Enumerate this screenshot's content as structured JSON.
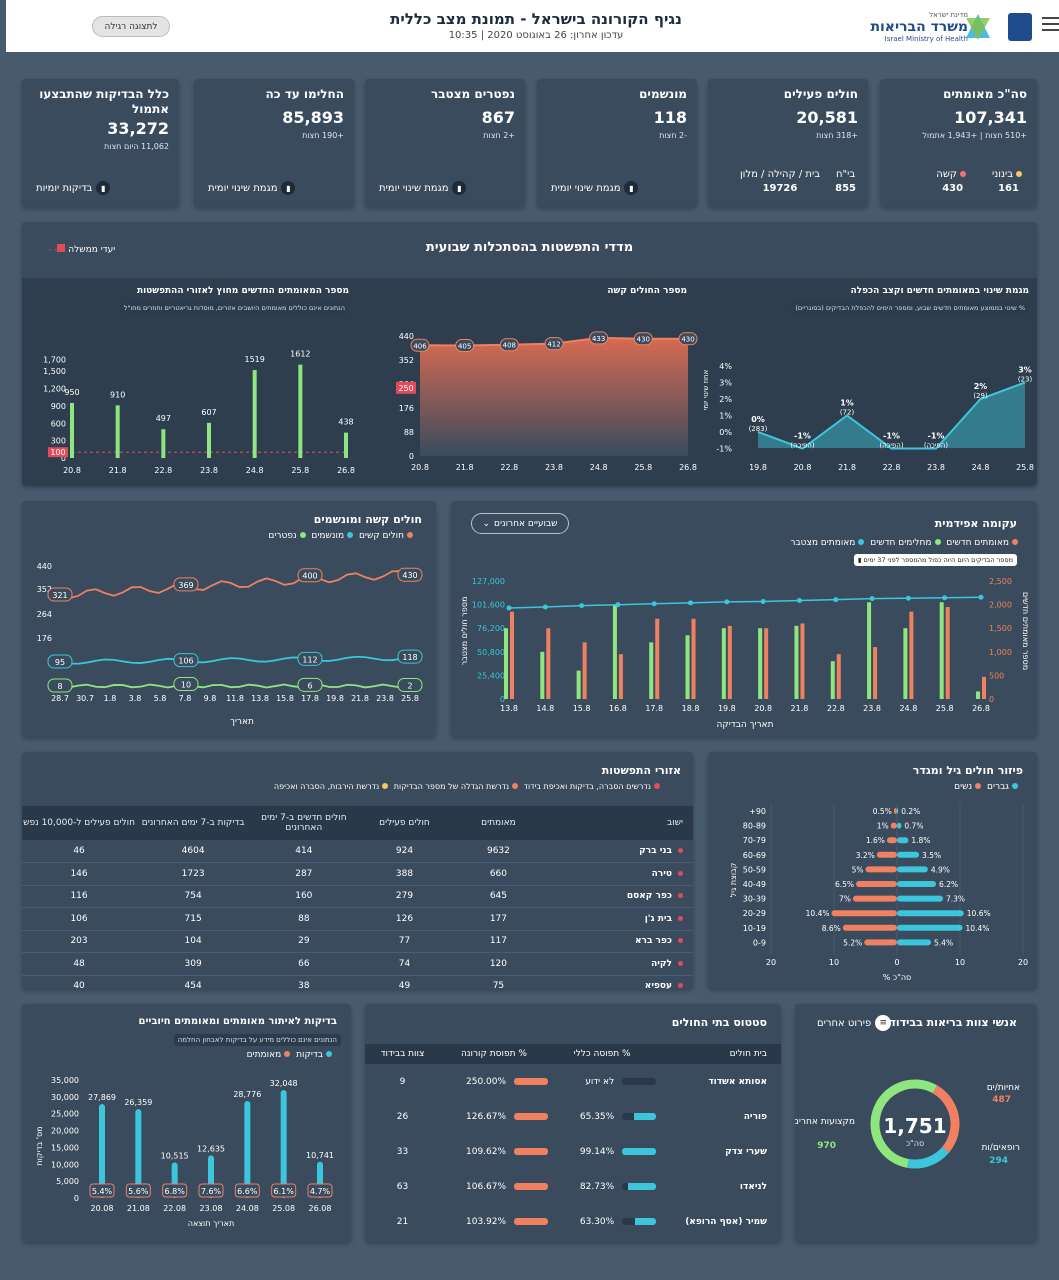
{
  "header": {
    "title": "נגיף הקורונה בישראל - תמונת מצב כללית",
    "updated": "עדכון אחרון: 26 באוגוסט 2020 | 10:35",
    "simple_view": "לתצוגה רגילה",
    "ministry_small": "מדינת ישראל",
    "ministry_he": "משרד הבריאות",
    "ministry_en": "Israel Ministry of Health"
  },
  "kpis": [
    {
      "title": "סה\"כ מאומתים",
      "value": "107,341",
      "delta": "+510 חצות | +1,943 אתמול",
      "sub": [
        {
          "label": "בינוני",
          "value": "161",
          "color": "#f2c95c"
        },
        {
          "label": "קשה",
          "value": "430",
          "color": "#f56f7b"
        }
      ]
    },
    {
      "title": "חולים פעילים",
      "value": "20,581",
      "delta": "+318 חצות",
      "sub": [
        {
          "label": "בי\"ח",
          "value": "855"
        },
        {
          "label": "בית / קהילה / מלון",
          "value": "19726"
        }
      ]
    },
    {
      "title": "מונשמים",
      "value": "118",
      "delta": "-2 חצות",
      "link": "מגמת שינוי יומית"
    },
    {
      "title": "נפטרים מצטבר",
      "value": "867",
      "delta": "+2 חצות",
      "link": "מגמת שינוי יומית"
    },
    {
      "title": "החלימו עד כה",
      "value": "85,893",
      "delta": "+190 חצות",
      "link": "מגמת שינוי יומית"
    },
    {
      "title": "כלל הבדיקות שהתבצעו אתמול",
      "value": "33,272",
      "delta": "11,062 היום חצות",
      "link": "בדיקות יומיות"
    }
  ],
  "weekly": {
    "title": "מדדי התפשטות בהסתכלות שבועית",
    "legend": "יעדי ממשלה",
    "c1": {
      "title": "מגמת שינוי במאומתים חדשים וקצב הכפלה",
      "info": "% שינוי בממוצע מאומתים חדשים שבוע, ומספר הימים להכפלת הבדיקים (בסוגריים)",
      "ylabel": "אחוז שינוי יומי",
      "x": [
        "19.8",
        "20.8",
        "21.8",
        "22.8",
        "23.8",
        "24.8",
        "25.8"
      ],
      "y": [
        0,
        -1,
        1,
        -1,
        -1,
        2,
        3
      ],
      "labels": [
        "0%",
        "-1%",
        "1%",
        "-1%",
        "-1%",
        "2%",
        "3%"
      ],
      "sub": [
        "(283)",
        "(הפיכה)",
        "(72)",
        "(הפיכה)",
        "(הפיכה)",
        "(29)",
        "(23)"
      ],
      "yticks": [
        "4%",
        "3%",
        "2%",
        "1%",
        "0%",
        "-1%"
      ]
    },
    "c2": {
      "title": "מספר החולים קשה",
      "x": [
        "20.8",
        "21.8",
        "22.8",
        "23.8",
        "24.8",
        "25.8",
        "26.8"
      ],
      "y": [
        406,
        405,
        408,
        412,
        433,
        430,
        430
      ],
      "yticks": [
        "440",
        "352",
        "264",
        "176",
        "88",
        "0"
      ],
      "target": "250"
    },
    "c3": {
      "title": "מספר המאומתים החדשים מחוץ לאזורי ההתפשטות",
      "info": "הנתונים אינם כוללים מאומתים היושבים אזורים, מוסדות גריאטריים וחוזרים מחו\"ל",
      "x": [
        "20.8",
        "21.8",
        "22.8",
        "23.8",
        "24.8",
        "25.8",
        "26.8"
      ],
      "y": [
        950,
        910,
        497,
        607,
        1519,
        1612,
        438
      ],
      "yticks": [
        "1,700",
        "1,500",
        "1,200",
        "900",
        "600",
        "300",
        "0"
      ],
      "target": "100"
    }
  },
  "severe": {
    "title": "חולים קשה ומונשמים",
    "legend": [
      "חולים קשים",
      "מונשמים",
      "נפטרים"
    ],
    "xlabel": "תאריך",
    "x": [
      "28.7",
      "30.7",
      "1.8",
      "3.8",
      "5.8",
      "7.8",
      "9.8",
      "11.8",
      "13.8",
      "15.8",
      "17.8",
      "19.8",
      "21.8",
      "23.8",
      "25.8"
    ],
    "yticks": [
      "440",
      "352",
      "264",
      "176"
    ],
    "callouts": {
      "severe": [
        "321",
        "369",
        "400",
        "430"
      ],
      "vent": [
        "95",
        "106",
        "112",
        "118"
      ],
      "dead": [
        "8",
        "10",
        "6",
        "2"
      ]
    }
  },
  "curve": {
    "title": "עקומה אפידמית",
    "dropdown": "שבועיים אחרונים",
    "legend": [
      "מאומתים חדשים",
      "מחלימים חדשים",
      "מאומתים מצטבר"
    ],
    "note": "מספר הבדיקים היום היוה כפול מהמספר לפני 37 ימים",
    "xlabel": "תאריך הבדיקה",
    "yleft": "מספר חולים מצטבר",
    "yright": "מספר מאומתים חדשים",
    "x": [
      "13.8",
      "14.8",
      "15.8",
      "16.8",
      "17.8",
      "18.8",
      "19.8",
      "20.8",
      "21.8",
      "22.8",
      "23.8",
      "24.8",
      "25.8",
      "26.8"
    ],
    "confirmed": [
      1850,
      1500,
      1200,
      950,
      1700,
      1700,
      1550,
      1500,
      1600,
      950,
      1100,
      1850,
      1950,
      470
    ],
    "recovered": [
      1500,
      1000,
      600,
      2000,
      1200,
      1350,
      1500,
      1500,
      1550,
      800,
      2050,
      1500,
      2050,
      160
    ],
    "cumulative": [
      98000,
      99000,
      100500,
      101500,
      102500,
      103500,
      104500,
      105000,
      106000,
      107000,
      108000,
      108500,
      109000,
      109500
    ],
    "yl": [
      "127,000",
      "101,600",
      "76,200",
      "50,800",
      "25,400",
      "0"
    ],
    "yr": [
      "2,500",
      "2,000",
      "1,500",
      "1,000",
      "500",
      "0"
    ]
  },
  "areas": {
    "title": "אזורי התפשטות",
    "legend": [
      "נדרשים הסברה, בדיקות ואכיפת בידוד",
      "נדרשת הגדלה של מספר הבדיקות",
      "נדרשת הירבות, הסברה ואכיפה"
    ],
    "columns": [
      "ישוב",
      "מאומתים",
      "חולים פעילים",
      "חולים חדשים ב-7 ימים האחרונים",
      "בדיקות ב-7 ימים האחרונים",
      "חולים פעילים ל-10,000 נפש"
    ],
    "rows": [
      [
        "בני ברק",
        "9632",
        "924",
        "414",
        "4604",
        "46"
      ],
      [
        "טירה",
        "660",
        "388",
        "287",
        "1723",
        "146"
      ],
      [
        "כפר קאסם",
        "645",
        "279",
        "160",
        "754",
        "116"
      ],
      [
        "בית ג'ן",
        "177",
        "126",
        "88",
        "715",
        "106"
      ],
      [
        "כפר ברא",
        "117",
        "77",
        "29",
        "104",
        "203"
      ],
      [
        "לקיה",
        "120",
        "74",
        "66",
        "309",
        "48"
      ],
      [
        "עספיא",
        "75",
        "49",
        "38",
        "454",
        "40"
      ]
    ]
  },
  "agegender": {
    "title": "פיזור חולים גיל ומגדר",
    "legend": [
      "גברים",
      "נשים"
    ],
    "ylabel": "קבוצת גיל",
    "xlabel": "% סה\"כ",
    "groups": [
      "+90",
      "80-89",
      "70-79",
      "60-69",
      "50-59",
      "40-49",
      "30-39",
      "20-29",
      "10-19",
      "0-9"
    ],
    "women": [
      0.5,
      1,
      1.6,
      3.2,
      5,
      6.5,
      7,
      10.4,
      8.6,
      5.2
    ],
    "men": [
      0.2,
      0.7,
      1.8,
      3.5,
      4.9,
      6.2,
      7.3,
      10.6,
      10.4,
      5.4
    ],
    "wl": [
      "0.5%",
      "1%",
      "1.6%",
      "3.2%",
      "5%",
      "6.5%",
      "7%",
      "10.4%",
      "8.6%",
      "5.2%"
    ],
    "ml": [
      "0.2%",
      "0.7%",
      "1.8%",
      "3.5%",
      "4.9%",
      "6.2%",
      "7.3%",
      "10.6%",
      "10.4%",
      "5.4%"
    ],
    "xticks": [
      "20",
      "10",
      "0",
      "10",
      "20"
    ]
  },
  "tests": {
    "title": "בדיקות לאיתור מאומתים ומאומתים חיוביים",
    "info": "הנתונים אינם כוללים מידע על בדיקות לאבחון החלמה",
    "legend": [
      "בדיקות",
      "מאומתים"
    ],
    "ylabel": "מס' בדיקות",
    "xlabel": "תאריך תוצאה",
    "x": [
      "20.08",
      "21.08",
      "22.08",
      "23.08",
      "24.08",
      "25.08",
      "26.08"
    ],
    "y": [
      27869,
      26359,
      10515,
      12635,
      28776,
      32048,
      10741
    ],
    "vl": [
      "27,869",
      "26,359",
      "10,515",
      "12,635",
      "28,776",
      "32,048",
      "10,741"
    ],
    "pct": [
      "5.4%",
      "5.6%",
      "6.8%",
      "7.6%",
      "6.6%",
      "6.1%",
      "4.7%"
    ],
    "yticks": [
      "35,000",
      "30,000",
      "25,000",
      "20,000",
      "15,000",
      "10,000",
      "5,000",
      "0"
    ]
  },
  "hospitals": {
    "title": "סטטוס בתי החולים",
    "columns": [
      "בית חולים",
      "% תפוסה כללי",
      "% תפוסת קורונה",
      "צוות בבידוד"
    ],
    "rows": [
      [
        "אסותא אשדוד",
        "לא ידוע",
        "250.00%",
        "9"
      ],
      [
        "פוריה",
        "65.35%",
        "126.67%",
        "26"
      ],
      [
        "שערי צדק",
        "99.14%",
        "109.62%",
        "33"
      ],
      [
        "לניאדו",
        "82.73%",
        "106.67%",
        "63"
      ],
      [
        "שמיר (אסף הרופא)",
        "63.30%",
        "103.92%",
        "21"
      ]
    ],
    "occ": [
      0,
      0.65,
      0.99,
      0.83,
      0.63
    ]
  },
  "staff": {
    "title": "אנשי צוות בריאות בבידוד",
    "detail": "פירוט אחרים",
    "total": "1,751",
    "total_label": "סה\"כ",
    "nurses": "אחיות/ים",
    "nurses_v": "487",
    "doctors": "רופאים/ות",
    "doctors_v": "294",
    "other": "מקצועות אחרים",
    "other_v": "970"
  },
  "colors": {
    "bg": "#485a6e",
    "card": "#3a4b5e",
    "orange": "#f08160",
    "green": "#8ee77e",
    "cyan": "#3cc6dc",
    "red": "#e14b5a"
  }
}
